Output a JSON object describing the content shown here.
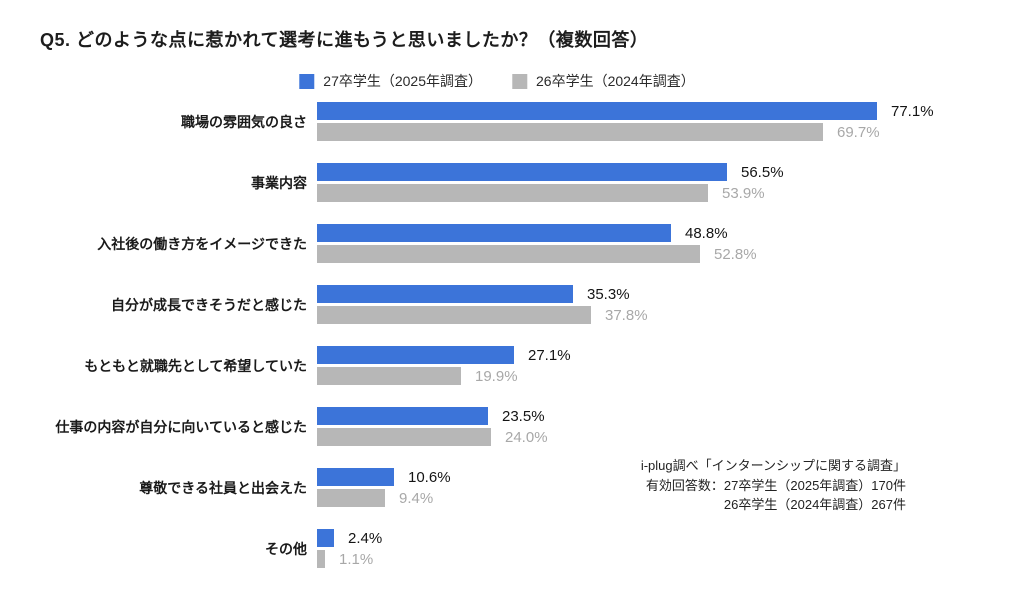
{
  "title": "Q5. どのような点に惹かれて選考に進もうと思いましたか？（複数回答）",
  "colors": {
    "series_primary": "#3c74d9",
    "series_secondary": "#b7b7b7",
    "value_primary_text": "#141414",
    "value_secondary_text": "#a8a8a8",
    "background": "#ffffff"
  },
  "legend": {
    "items": [
      {
        "label": "27卒学生（2025年調査）",
        "color": "#3c74d9"
      },
      {
        "label": "26卒学生（2024年調査）",
        "color": "#b7b7b7"
      }
    ]
  },
  "chart_data": {
    "type": "bar",
    "orientation": "horizontal",
    "title": "Q5. どのような点に惹かれて選考に進もうと思いましたか？（複数回答）",
    "xlabel": "",
    "ylabel": "",
    "xlim": [
      0,
      100
    ],
    "value_suffix": "%",
    "grid": false,
    "legend_position": "top-center",
    "categories": [
      "職場の雰囲気の良さ",
      "事業内容",
      "入社後の働き方をイメージできた",
      "自分が成長できそうだと感じた",
      "もともと就職先として希望していた",
      "仕事の内容が自分に向いていると感じた",
      "尊敬できる社員と出会えた",
      "その他"
    ],
    "series": [
      {
        "name": "27卒学生（2025年調査）",
        "color": "#3c74d9",
        "values": [
          77.1,
          56.5,
          48.8,
          35.3,
          27.1,
          23.5,
          10.6,
          2.4
        ],
        "labels": [
          "77.1%",
          "56.5%",
          "48.8%",
          "35.3%",
          "27.1%",
          "23.5%",
          "10.6%",
          "2.4%"
        ]
      },
      {
        "name": "26卒学生（2024年調査）",
        "color": "#b7b7b7",
        "values": [
          69.7,
          53.9,
          52.8,
          37.8,
          19.9,
          24.0,
          9.4,
          1.1
        ],
        "labels": [
          "69.7%",
          "53.9%",
          "52.8%",
          "37.8%",
          "19.9%",
          "24.0%",
          "9.4%",
          "1.1%"
        ]
      }
    ]
  },
  "source_note": {
    "lines": [
      "i-plug調べ「インターンシップに関する調査」",
      "有効回答数：27卒学生（2025年調査）170件",
      "26卒学生（2024年調査）267件"
    ]
  }
}
